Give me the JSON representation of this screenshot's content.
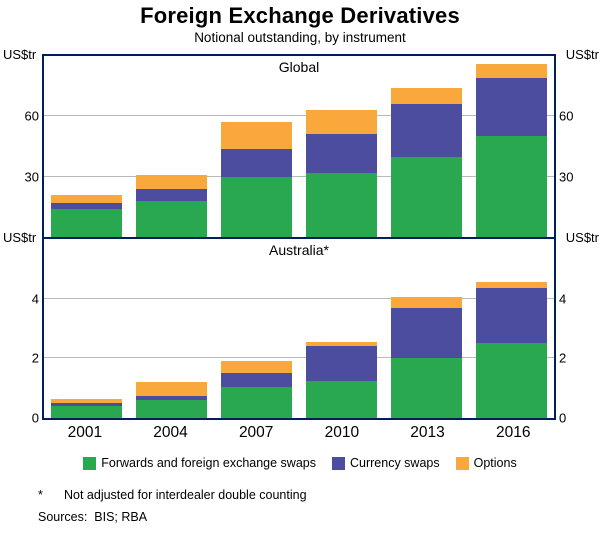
{
  "title": "Foreign Exchange Derivatives",
  "subtitle": "Notional outstanding, by instrument",
  "axis_unit": "US$tr",
  "colors": {
    "forwards": "#2aa84f",
    "currency_swaps": "#4d4d9f",
    "options": "#f9a93b",
    "frame": "#001e5a",
    "gridline": "#b9b9b9"
  },
  "legend": [
    {
      "label": "Forwards and foreign exchange swaps",
      "color_key": "forwards"
    },
    {
      "label": "Currency swaps",
      "color_key": "currency_swaps"
    },
    {
      "label": "Options",
      "color_key": "options"
    }
  ],
  "footnote": {
    "marker": "*",
    "text": "Not adjusted for interdealer double counting"
  },
  "sources": "Sources:  BIS; RBA",
  "chart_data": [
    {
      "type": "bar",
      "stacked": true,
      "panel": "Global",
      "ylabel": "US$tr",
      "ylim": [
        0,
        90
      ],
      "yticks": [
        30,
        60
      ],
      "grid": true,
      "categories": [
        "2001",
        "2004",
        "2007",
        "2010",
        "2013",
        "2016"
      ],
      "series": [
        {
          "name": "Forwards and foreign exchange swaps",
          "color_key": "forwards",
          "values": [
            14,
            18,
            30,
            32,
            40,
            50
          ]
        },
        {
          "name": "Currency swaps",
          "color_key": "currency_swaps",
          "values": [
            3,
            6,
            14,
            19,
            26,
            29
          ]
        },
        {
          "name": "Options",
          "color_key": "options",
          "values": [
            4,
            7,
            13,
            12,
            8,
            7
          ]
        }
      ]
    },
    {
      "type": "bar",
      "stacked": true,
      "panel": "Australia*",
      "ylabel": "US$tr",
      "ylim": [
        0,
        6
      ],
      "yticks": [
        0,
        2,
        4
      ],
      "grid": true,
      "categories": [
        "2001",
        "2004",
        "2007",
        "2010",
        "2013",
        "2016"
      ],
      "series": [
        {
          "name": "Forwards and foreign exchange swaps",
          "color_key": "forwards",
          "values": [
            0.4,
            0.6,
            1.05,
            1.25,
            2.0,
            2.5
          ]
        },
        {
          "name": "Currency swaps",
          "color_key": "currency_swaps",
          "values": [
            0.1,
            0.15,
            0.45,
            1.15,
            1.7,
            1.85
          ]
        },
        {
          "name": "Options",
          "color_key": "options",
          "values": [
            0.15,
            0.45,
            0.4,
            0.15,
            0.35,
            0.2
          ]
        }
      ]
    }
  ]
}
